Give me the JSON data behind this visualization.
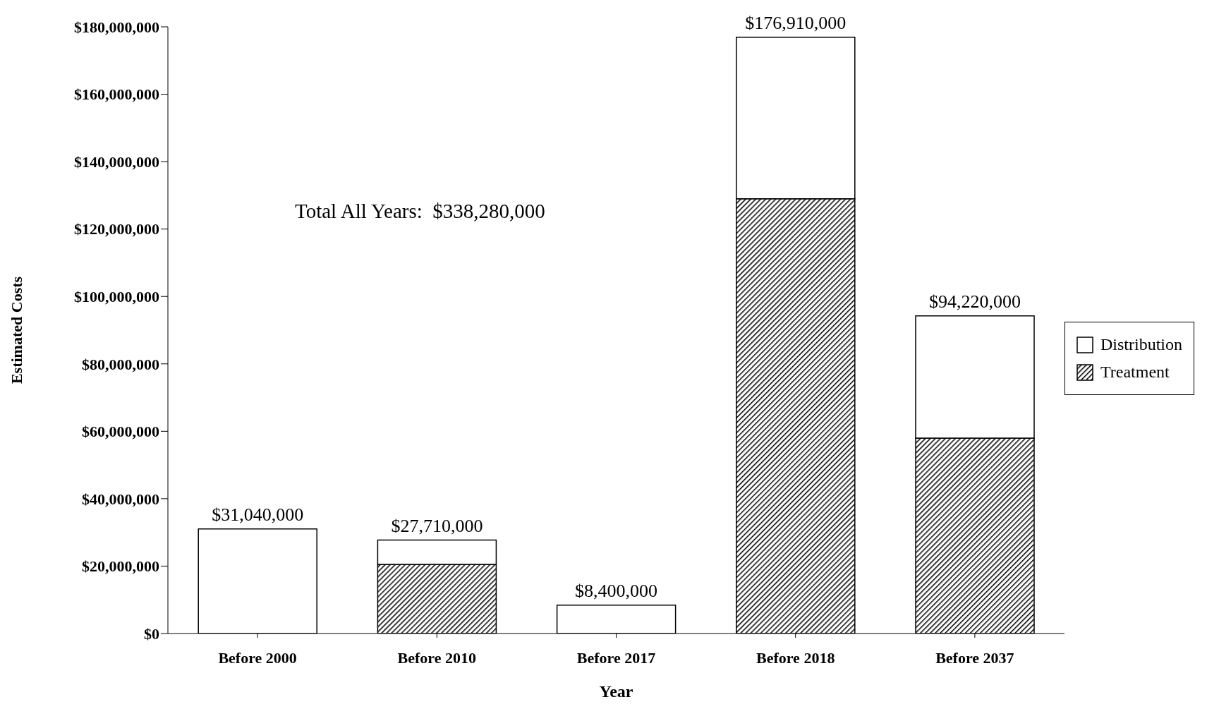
{
  "chart_data": {
    "type": "bar",
    "stacked": true,
    "xlabel": "Year",
    "ylabel": "Estimated Costs",
    "categories": [
      "Before 2000",
      "Before 2010",
      "Before 2017",
      "Before 2018",
      "Before 2037"
    ],
    "series": [
      {
        "name": "Treatment",
        "color": "#000000",
        "values": [
          0,
          20500000,
          0,
          129000000,
          58000000
        ]
      },
      {
        "name": "Distribution",
        "color": "#ffffff",
        "values": [
          31040000,
          7210000,
          8400000,
          47910000,
          36220000
        ]
      }
    ],
    "totals": [
      "$31,040,000",
      "$27,710,000",
      "$8,400,000",
      "$176,910,000",
      "$94,220,000"
    ],
    "annotations": [
      "Total All Years:  $338,280,000"
    ],
    "ylim": [
      0,
      180000000
    ],
    "yticks": [
      {
        "value": 0,
        "label": "$0"
      },
      {
        "value": 20000000,
        "label": "$20,000,000"
      },
      {
        "value": 40000000,
        "label": "$40,000,000"
      },
      {
        "value": 60000000,
        "label": "$60,000,000"
      },
      {
        "value": 80000000,
        "label": "$80,000,000"
      },
      {
        "value": 100000000,
        "label": "$100,000,000"
      },
      {
        "value": 120000000,
        "label": "$120,000,000"
      },
      {
        "value": 140000000,
        "label": "$140,000,000"
      },
      {
        "value": 160000000,
        "label": "$160,000,000"
      },
      {
        "value": 180000000,
        "label": "$180,000,000"
      }
    ],
    "grid": false,
    "legend": "right"
  }
}
